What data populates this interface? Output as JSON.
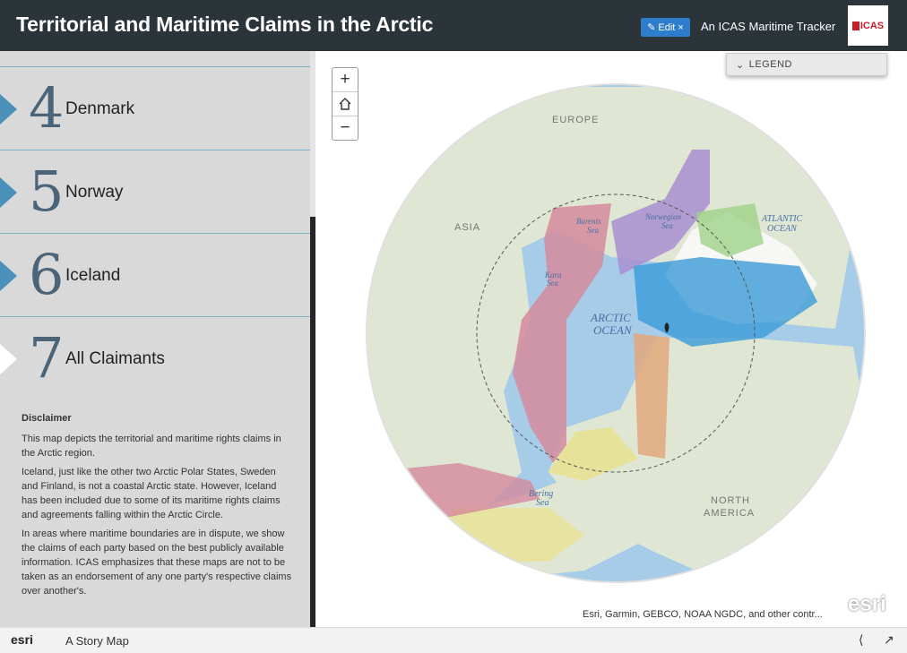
{
  "header": {
    "title": "Territorial and Maritime Claims in the Arctic",
    "edit_label": "Edit ×",
    "tracker": "An ICAS Maritime Tracker",
    "logo_text": "ICAS"
  },
  "sidebar": {
    "items": [
      {
        "num": "4",
        "name": "Denmark"
      },
      {
        "num": "5",
        "name": "Norway"
      },
      {
        "num": "6",
        "name": "Iceland"
      },
      {
        "num": "7",
        "name": "All Claimants"
      }
    ],
    "disclaimer_title": "Disclaimer",
    "paragraphs": [
      "This map depicts the territorial and maritime rights claims in the Arctic region.",
      "Iceland, just like the other two Arctic Polar States, Sweden and Finland, is not a coastal Arctic state. However, Iceland has been included due to some of its maritime rights claims and agreements falling within the Arctic Circle.",
      "In areas where maritime boundaries are in dispute, we show the claims of each party based on the best publicly available information. ICAS emphasizes that these maps are not to be taken as an endorsement of any one party's respective claims over another's."
    ]
  },
  "map": {
    "legend_label": "LEGEND",
    "zoom_in": "+",
    "home_icon": "home-icon",
    "zoom_out": "−",
    "labels": {
      "europe": "EUROPE",
      "asia": "ASIA",
      "barents": "Barents",
      "barents2": "Sea",
      "norwegian": "Norwegian",
      "norwegian2": "Sea",
      "atlantic": "ATLANTIC",
      "atlantic2": "OCEAN",
      "kara": "Kara",
      "kara2": "Sea",
      "arctic": "ARCTIC",
      "arctic2": "OCEAN",
      "bering": "Bering",
      "bering2": "Sea",
      "north": "NORTH",
      "america": "AMERICA"
    },
    "attribution": "Esri, Garmin, GEBCO, NOAA NGDC, and other contr...",
    "powered": "esri"
  },
  "footer": {
    "esri": "esri",
    "story": "A Story Map"
  },
  "colors": {
    "header_bg": "#2b3438",
    "accent": "#4a90b8",
    "edit_btn": "#2e7dcc"
  }
}
